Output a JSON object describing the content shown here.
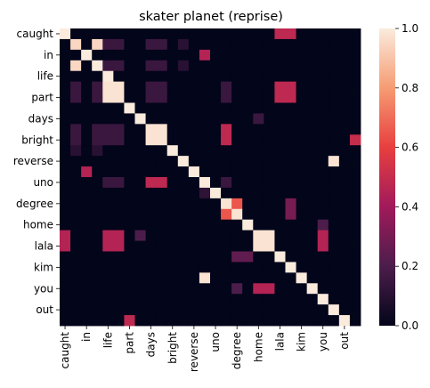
{
  "chart_data": {
    "type": "heatmap",
    "title": "skater planet (reprise)",
    "row_labels": [
      "caught",
      "in",
      "life",
      "part",
      "days",
      "bright",
      "reverse",
      "uno",
      "degree",
      "home",
      "lala",
      "kim",
      "you",
      "out"
    ],
    "col_labels": [
      "caught",
      "in",
      "life",
      "part",
      "days",
      "bright",
      "reverse",
      "uno",
      "degree",
      "home",
      "lala",
      "kim",
      "you",
      "out"
    ],
    "labels": [
      "caught",
      "",
      "in",
      "",
      "life",
      "",
      "part",
      "",
      "days",
      "",
      "bright",
      "",
      "reverse",
      "",
      "uno",
      "",
      "degree",
      "",
      "home",
      "",
      "lala",
      "",
      "kim",
      "",
      "you",
      "",
      "out",
      ""
    ],
    "values": [
      [
        1.0,
        0,
        0,
        0,
        0,
        0,
        0,
        0,
        0,
        0,
        0,
        0,
        0,
        0,
        0,
        0,
        0,
        0,
        0,
        0,
        0.48,
        0.48,
        0,
        0,
        0,
        0,
        0,
        0
      ],
      [
        0,
        0.95,
        0,
        0.95,
        0.15,
        0.15,
        0,
        0,
        0.15,
        0.15,
        0,
        0.1,
        0,
        0,
        0,
        0,
        0,
        0,
        0,
        0,
        0,
        0,
        0,
        0,
        0,
        0,
        0,
        0
      ],
      [
        0,
        0,
        1.0,
        0,
        0,
        0,
        0,
        0,
        0,
        0,
        0,
        0,
        0,
        0.45,
        0,
        0,
        0,
        0,
        0,
        0,
        0,
        0,
        0,
        0,
        0,
        0,
        0,
        0
      ],
      [
        0,
        0.95,
        0,
        1.0,
        0.15,
        0.15,
        0,
        0,
        0.15,
        0.15,
        0,
        0.1,
        0,
        0,
        0,
        0,
        0,
        0,
        0,
        0,
        0,
        0,
        0,
        0,
        0,
        0,
        0,
        0
      ],
      [
        0,
        0,
        0,
        0,
        1.0,
        0,
        0,
        0,
        0,
        0,
        0,
        0,
        0,
        0,
        0,
        0,
        0,
        0,
        0,
        0,
        0,
        0,
        0,
        0,
        0,
        0,
        0,
        0
      ],
      [
        0,
        0.15,
        0,
        0.15,
        0.98,
        0.98,
        0,
        0,
        0.15,
        0.15,
        0,
        0,
        0,
        0,
        0,
        0.15,
        0,
        0,
        0,
        0,
        0.48,
        0.48,
        0,
        0,
        0,
        0,
        0,
        0
      ],
      [
        0,
        0.15,
        0,
        0.15,
        0.98,
        0.98,
        0,
        0,
        0.15,
        0.15,
        0,
        0,
        0,
        0,
        0,
        0.15,
        0,
        0,
        0,
        0,
        0.48,
        0.48,
        0,
        0,
        0,
        0,
        0,
        0
      ],
      [
        0,
        0,
        0,
        0,
        0,
        0,
        1.0,
        0,
        0,
        0,
        0,
        0,
        0,
        0,
        0,
        0,
        0,
        0,
        0,
        0,
        0,
        0,
        0,
        0,
        0,
        0,
        0,
        0
      ],
      [
        0,
        0,
        0,
        0,
        0,
        0,
        0,
        1.0,
        0,
        0,
        0,
        0,
        0,
        0,
        0,
        0,
        0,
        0,
        0.15,
        0,
        0,
        0,
        0,
        0,
        0,
        0,
        0,
        0
      ],
      [
        0,
        0.15,
        0,
        0.15,
        0.15,
        0.15,
        0,
        0,
        0.98,
        0.98,
        0,
        0,
        0,
        0,
        0,
        0.48,
        0,
        0,
        0,
        0,
        0,
        0,
        0,
        0,
        0,
        0,
        0,
        0
      ],
      [
        0,
        0.15,
        0,
        0.15,
        0.15,
        0.15,
        0,
        0,
        0.98,
        0.98,
        0,
        0,
        0,
        0,
        0,
        0.48,
        0,
        0,
        0,
        0,
        0,
        0,
        0,
        0,
        0,
        0,
        0,
        0.5
      ],
      [
        0,
        0.1,
        0,
        0.1,
        0,
        0,
        0,
        0,
        0,
        0,
        1.0,
        0,
        0,
        0,
        0,
        0,
        0,
        0,
        0,
        0,
        0,
        0,
        0,
        0,
        0,
        0,
        0,
        0
      ],
      [
        0,
        0,
        0,
        0,
        0,
        0,
        0,
        0,
        0,
        0,
        0,
        1.0,
        0,
        0,
        0,
        0,
        0,
        0,
        0,
        0,
        0,
        0,
        0,
        0,
        0,
        0.98,
        0,
        0
      ],
      [
        0,
        0,
        0.45,
        0,
        0,
        0,
        0,
        0,
        0,
        0,
        0,
        0,
        1.0,
        0,
        0,
        0,
        0,
        0,
        0,
        0,
        0,
        0,
        0,
        0,
        0,
        0,
        0,
        0
      ],
      [
        0,
        0,
        0,
        0,
        0.15,
        0.15,
        0,
        0,
        0.48,
        0.48,
        0,
        0,
        0,
        1.0,
        0,
        0.15,
        0,
        0,
        0,
        0,
        0,
        0,
        0,
        0,
        0,
        0,
        0,
        0
      ],
      [
        0,
        0,
        0,
        0,
        0,
        0,
        0,
        0,
        0,
        0,
        0,
        0,
        0,
        0.12,
        1.0,
        0,
        0,
        0,
        0,
        0,
        0,
        0,
        0,
        0,
        0,
        0,
        0,
        0
      ],
      [
        0,
        0,
        0,
        0,
        0,
        0,
        0,
        0,
        0,
        0,
        0,
        0,
        0,
        0,
        0,
        0.98,
        0.65,
        0,
        0,
        0,
        0,
        0.3,
        0,
        0,
        0,
        0,
        0,
        0
      ],
      [
        0,
        0,
        0,
        0,
        0,
        0,
        0,
        0,
        0,
        0,
        0,
        0,
        0,
        0,
        0,
        0.65,
        0.98,
        0,
        0,
        0,
        0,
        0.3,
        0,
        0,
        0,
        0,
        0,
        0
      ],
      [
        0,
        0,
        0,
        0,
        0,
        0,
        0,
        0,
        0,
        0,
        0,
        0,
        0,
        0,
        0,
        0,
        0,
        1.0,
        0,
        0,
        0,
        0,
        0,
        0,
        0.2,
        0,
        0,
        0
      ],
      [
        0.45,
        0,
        0,
        0,
        0.45,
        0.45,
        0,
        0.2,
        0,
        0,
        0,
        0,
        0,
        0,
        0,
        0,
        0,
        0,
        0.98,
        0.98,
        0,
        0,
        0,
        0,
        0.45,
        0,
        0,
        0
      ],
      [
        0.45,
        0,
        0,
        0,
        0.45,
        0.45,
        0,
        0,
        0,
        0,
        0,
        0,
        0,
        0,
        0,
        0,
        0,
        0,
        0.98,
        0.98,
        0,
        0,
        0,
        0,
        0.45,
        0,
        0,
        0
      ],
      [
        0,
        0,
        0,
        0,
        0,
        0,
        0,
        0,
        0,
        0,
        0,
        0,
        0,
        0,
        0,
        0,
        0.25,
        0.25,
        0,
        0,
        1.0,
        0,
        0,
        0,
        0,
        0,
        0,
        0
      ],
      [
        0,
        0,
        0,
        0,
        0,
        0,
        0,
        0,
        0,
        0,
        0,
        0,
        0,
        0,
        0,
        0,
        0,
        0,
        0,
        0,
        0,
        1.0,
        0,
        0,
        0,
        0,
        0,
        0
      ],
      [
        0,
        0,
        0,
        0,
        0,
        0,
        0,
        0,
        0,
        0,
        0,
        0,
        0,
        0.98,
        0,
        0,
        0,
        0,
        0,
        0,
        0,
        0,
        1.0,
        0,
        0,
        0,
        0,
        0
      ],
      [
        0,
        0,
        0,
        0,
        0,
        0,
        0,
        0,
        0,
        0,
        0,
        0,
        0,
        0,
        0,
        0,
        0.2,
        0,
        0.45,
        0.45,
        0,
        0,
        0,
        1.0,
        0,
        0,
        0,
        0
      ],
      [
        0,
        0,
        0,
        0,
        0,
        0,
        0,
        0,
        0,
        0,
        0,
        0,
        0,
        0,
        0,
        0,
        0,
        0,
        0,
        0,
        0,
        0,
        0,
        0,
        1.0,
        0,
        0,
        0
      ],
      [
        0,
        0,
        0,
        0,
        0,
        0,
        0,
        0,
        0,
        0,
        0,
        0,
        0,
        0,
        0,
        0,
        0,
        0,
        0,
        0,
        0,
        0,
        0,
        0,
        0,
        1.0,
        0,
        0
      ],
      [
        0,
        0,
        0,
        0,
        0,
        0,
        0.48,
        0,
        0,
        0,
        0,
        0,
        0,
        0,
        0,
        0,
        0,
        0,
        0,
        0,
        0,
        0,
        0,
        0,
        0,
        0,
        1.0,
        0
      ]
    ],
    "vmin": 0,
    "vmax": 1,
    "colorbar_ticks": [
      "0.0",
      "0.2",
      "0.4",
      "0.6",
      "0.8",
      "1.0"
    ],
    "colormap": "rocket",
    "colormap_stops": [
      "#03051a",
      "#4c1d4b",
      "#a11a5b",
      "#e83f3f",
      "#f69c73",
      "#faebdd"
    ]
  }
}
